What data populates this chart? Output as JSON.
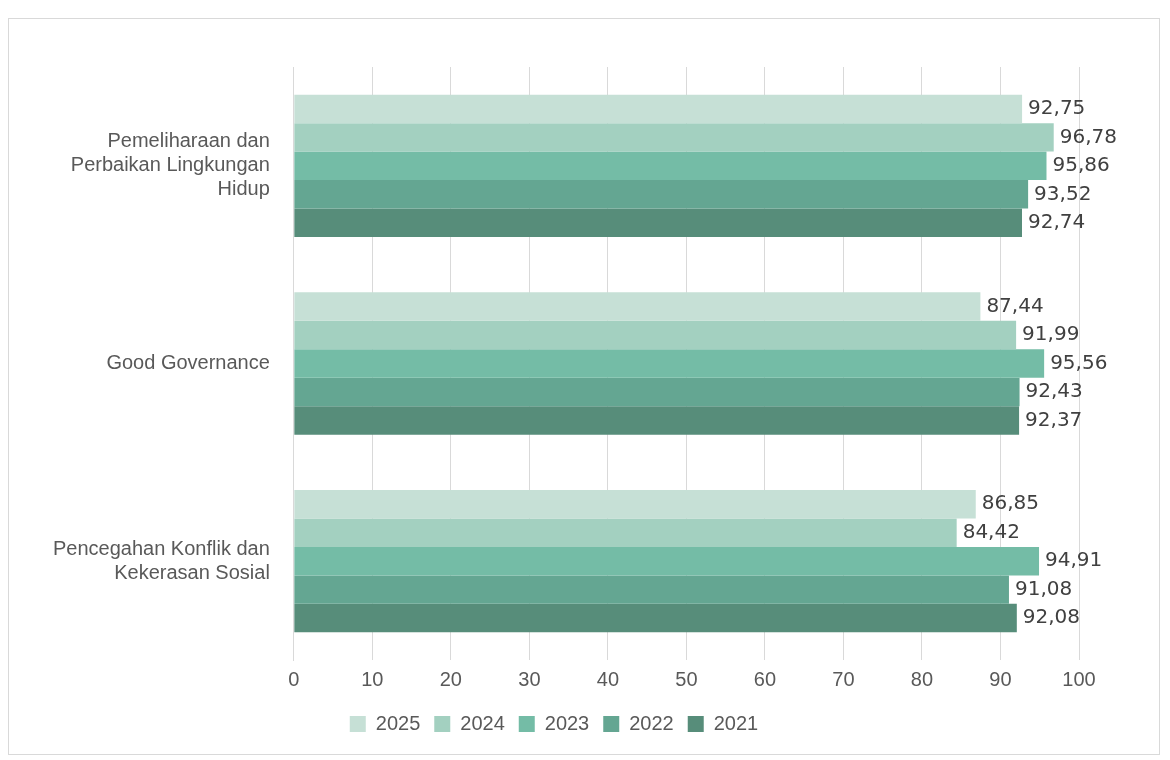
{
  "chart_data": {
    "type": "bar",
    "orientation": "horizontal",
    "categories": [
      "Pemeliharaan dan Perbaikan Lingkungan Hidup",
      "Good Governance",
      "Pencegahan Konflik dan Kekerasan Sosial"
    ],
    "series": [
      {
        "name": "2025",
        "color": "#c6e0d6",
        "values": [
          92.75,
          87.44,
          86.85
        ],
        "value_labels": [
          "92,75",
          "87,44",
          "86,85"
        ]
      },
      {
        "name": "2024",
        "color": "#a3d0c0",
        "values": [
          96.78,
          91.99,
          84.42
        ],
        "value_labels": [
          "96,78",
          "91,99",
          "84,42"
        ]
      },
      {
        "name": "2023",
        "color": "#74bca6",
        "values": [
          95.86,
          95.56,
          94.91
        ],
        "value_labels": [
          "95,86",
          "95,56",
          "94,91"
        ]
      },
      {
        "name": "2022",
        "color": "#64a692",
        "values": [
          93.52,
          92.43,
          91.08
        ],
        "value_labels": [
          "93,52",
          "92,43",
          "91,08"
        ]
      },
      {
        "name": "2021",
        "color": "#578d7a",
        "values": [
          92.74,
          92.37,
          92.08
        ],
        "value_labels": [
          "92,74",
          "92,37",
          "92,08"
        ]
      }
    ],
    "xlim": [
      0,
      100
    ],
    "xticks": [
      0,
      10,
      20,
      30,
      40,
      50,
      60,
      70,
      80,
      90,
      100
    ],
    "grid": "x",
    "legend": "bottom"
  }
}
